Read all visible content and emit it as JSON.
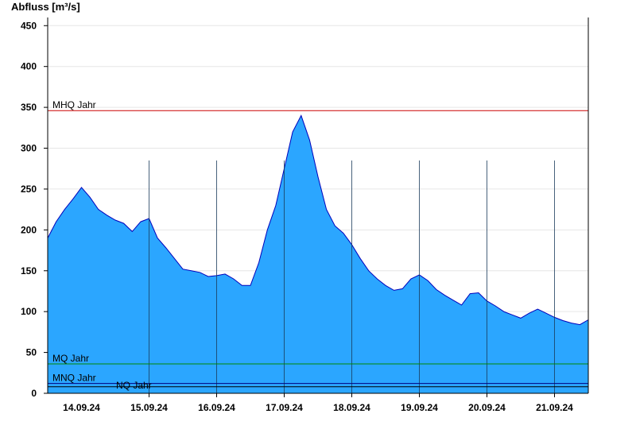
{
  "chart_data": {
    "type": "area",
    "ylabel": "Abfluss [m³/s]",
    "ylim": [
      0,
      460
    ],
    "yticks": [
      0,
      50,
      100,
      150,
      200,
      250,
      300,
      350,
      400,
      450
    ],
    "xlim": [
      "2024-09-13T12:00",
      "2024-09-21T12:00"
    ],
    "x_tick_labels": [
      "14.09.24",
      "15.09.24",
      "16.09.24",
      "17.09.24",
      "18.09.24",
      "19.09.24",
      "20.09.24",
      "21.09.24"
    ],
    "x_ticks_at": [
      "2024-09-14",
      "2024-09-15",
      "2024-09-16",
      "2024-09-17",
      "2024-09-18",
      "2024-09-19",
      "2024-09-20",
      "2024-09-21"
    ],
    "colors": {
      "fill": "#2ba6ff",
      "line": "#0000bb",
      "mhq": "#cc0000",
      "mq": "#008800",
      "mnq": "#000080",
      "nq": "#000000",
      "grid": "#e6e6e6"
    },
    "reference_lines": [
      {
        "name": "MHQ Jahr",
        "value": 346,
        "color": "#cc0000"
      },
      {
        "name": "MQ Jahr",
        "value": 36,
        "color": "#008800"
      },
      {
        "name": "MNQ Jahr",
        "value": 12,
        "color": "#000080"
      },
      {
        "name": "NQ Jahr",
        "value": 8,
        "color": "#000000"
      }
    ],
    "series": [
      {
        "x": [
          "2024-09-13T12:00",
          "2024-09-13T15:00",
          "2024-09-13T18:00",
          "2024-09-13T21:00",
          "2024-09-14T00:00",
          "2024-09-14T03:00",
          "2024-09-14T06:00",
          "2024-09-14T09:00",
          "2024-09-14T12:00",
          "2024-09-14T15:00",
          "2024-09-14T18:00",
          "2024-09-14T21:00",
          "2024-09-15T00:00",
          "2024-09-15T03:00",
          "2024-09-15T06:00",
          "2024-09-15T09:00",
          "2024-09-15T12:00",
          "2024-09-15T15:00",
          "2024-09-15T18:00",
          "2024-09-15T21:00",
          "2024-09-16T00:00",
          "2024-09-16T03:00",
          "2024-09-16T06:00",
          "2024-09-16T09:00",
          "2024-09-16T12:00",
          "2024-09-16T15:00",
          "2024-09-16T18:00",
          "2024-09-16T21:00",
          "2024-09-17T00:00",
          "2024-09-17T03:00",
          "2024-09-17T06:00",
          "2024-09-17T09:00",
          "2024-09-17T12:00",
          "2024-09-17T15:00",
          "2024-09-17T18:00",
          "2024-09-17T21:00",
          "2024-09-18T00:00",
          "2024-09-18T03:00",
          "2024-09-18T06:00",
          "2024-09-18T09:00",
          "2024-09-18T12:00",
          "2024-09-18T15:00",
          "2024-09-18T18:00",
          "2024-09-18T21:00",
          "2024-09-19T00:00",
          "2024-09-19T03:00",
          "2024-09-19T06:00",
          "2024-09-19T09:00",
          "2024-09-19T12:00",
          "2024-09-19T15:00",
          "2024-09-19T18:00",
          "2024-09-19T21:00",
          "2024-09-20T00:00",
          "2024-09-20T03:00",
          "2024-09-20T06:00",
          "2024-09-20T09:00",
          "2024-09-20T12:00",
          "2024-09-20T15:00",
          "2024-09-20T18:00",
          "2024-09-20T21:00",
          "2024-09-21T00:00",
          "2024-09-21T03:00",
          "2024-09-21T06:00",
          "2024-09-21T09:00",
          "2024-09-21T12:00"
        ],
        "values": [
          190,
          210,
          225,
          238,
          252,
          240,
          225,
          218,
          212,
          208,
          198,
          210,
          214,
          190,
          178,
          165,
          152,
          150,
          148,
          143,
          144,
          146,
          140,
          132,
          132,
          160,
          200,
          230,
          275,
          320,
          340,
          310,
          265,
          225,
          205,
          196,
          182,
          165,
          150,
          140,
          132,
          126,
          128,
          140,
          145,
          138,
          127,
          120,
          114,
          108,
          122,
          123,
          113,
          107,
          100,
          96,
          92,
          98,
          103,
          98,
          93,
          89,
          86,
          84,
          90
        ]
      }
    ]
  }
}
